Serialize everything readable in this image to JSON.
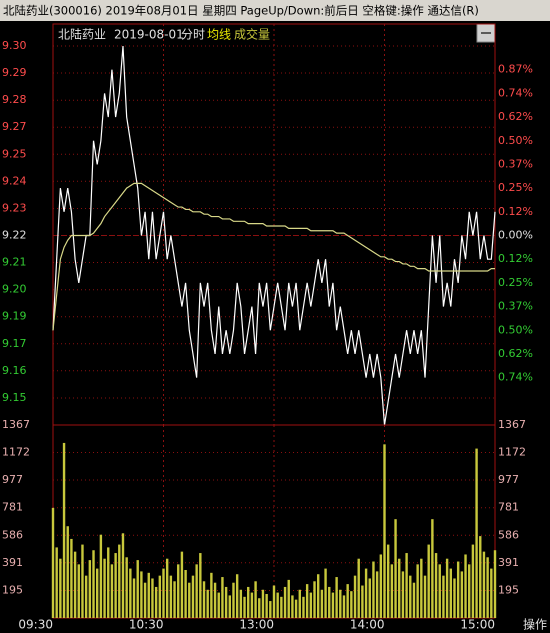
{
  "title_bar": "北陆药业(300016) 2019年08月01日 星期四 PageUp/Down:前后日 空格键:操作 通达信(R)",
  "corner_button": "操作",
  "chart_data": [
    {
      "type": "line",
      "name": "北陆药业",
      "date": "2019-08-01",
      "mode": "分时",
      "grid": true,
      "xlim": [
        0,
        240
      ],
      "x": [
        0,
        2,
        4,
        6,
        8,
        10,
        12,
        14,
        16,
        18,
        20,
        22,
        24,
        26,
        28,
        30,
        32,
        34,
        36,
        38,
        40,
        42,
        44,
        46,
        48,
        50,
        52,
        54,
        56,
        58,
        60,
        62,
        64,
        66,
        68,
        70,
        72,
        74,
        76,
        78,
        80,
        82,
        84,
        86,
        88,
        90,
        92,
        94,
        96,
        98,
        100,
        102,
        104,
        106,
        108,
        110,
        112,
        114,
        116,
        118,
        120,
        122,
        124,
        126,
        128,
        130,
        132,
        134,
        136,
        138,
        140,
        142,
        144,
        146,
        148,
        150,
        152,
        154,
        156,
        158,
        160,
        162,
        164,
        166,
        168,
        170,
        172,
        174,
        176,
        178,
        180,
        182,
        184,
        186,
        188,
        190,
        192,
        194,
        196,
        198,
        200,
        202,
        204,
        206,
        208,
        210,
        212,
        214,
        216,
        218,
        220,
        222,
        224,
        226,
        228,
        230,
        232,
        234,
        236,
        238,
        240
      ],
      "series": [
        {
          "color": "#ffffff",
          "values": [
            9.18,
            9.21,
            9.24,
            9.23,
            9.24,
            9.23,
            9.21,
            9.2,
            9.21,
            9.22,
            9.22,
            9.26,
            9.25,
            9.26,
            9.28,
            9.27,
            9.29,
            9.27,
            9.28,
            9.3,
            9.27,
            9.26,
            9.25,
            9.24,
            9.22,
            9.23,
            9.21,
            9.23,
            9.21,
            9.22,
            9.23,
            9.21,
            9.22,
            9.21,
            9.2,
            9.19,
            9.2,
            9.18,
            9.17,
            9.16,
            9.2,
            9.19,
            9.2,
            9.18,
            9.17,
            9.19,
            9.17,
            9.18,
            9.17,
            9.18,
            9.2,
            9.19,
            9.17,
            9.18,
            9.19,
            9.17,
            9.2,
            9.19,
            9.2,
            9.18,
            9.19,
            9.2,
            9.19,
            9.18,
            9.2,
            9.19,
            9.2,
            9.18,
            9.19,
            9.2,
            9.19,
            9.2,
            9.21,
            9.2,
            9.21,
            9.19,
            9.2,
            9.18,
            9.19,
            9.18,
            9.17,
            9.18,
            9.17,
            9.18,
            9.17,
            9.16,
            9.17,
            9.16,
            9.17,
            9.16,
            9.14,
            9.15,
            9.16,
            9.17,
            9.16,
            9.17,
            9.18,
            9.17,
            9.18,
            9.17,
            9.18,
            9.16,
            9.19,
            9.22,
            9.2,
            9.22,
            9.19,
            9.2,
            9.19,
            9.21,
            9.2,
            9.22,
            9.21,
            9.23,
            9.22,
            9.23,
            9.21,
            9.22,
            9.21,
            9.21,
            9.23
          ]
        },
        {
          "name": "均线",
          "color": "#d8d888",
          "values": [
            9.18,
            9.195,
            9.21,
            9.215,
            9.218,
            9.22,
            9.22,
            9.22,
            9.22,
            9.22,
            9.22,
            9.221,
            9.223,
            9.225,
            9.228,
            9.23,
            9.232,
            9.234,
            9.236,
            9.238,
            9.24,
            9.241,
            9.242,
            9.242,
            9.242,
            9.241,
            9.24,
            9.239,
            9.238,
            9.237,
            9.236,
            9.235,
            9.234,
            9.233,
            9.232,
            9.232,
            9.231,
            9.231,
            9.23,
            9.23,
            9.23,
            9.229,
            9.229,
            9.228,
            9.228,
            9.228,
            9.227,
            9.227,
            9.227,
            9.226,
            9.226,
            9.226,
            9.226,
            9.225,
            9.225,
            9.225,
            9.225,
            9.225,
            9.224,
            9.224,
            9.224,
            9.224,
            9.224,
            9.224,
            9.223,
            9.223,
            9.223,
            9.223,
            9.223,
            9.223,
            9.222,
            9.222,
            9.222,
            9.222,
            9.222,
            9.222,
            9.222,
            9.221,
            9.221,
            9.221,
            9.22,
            9.219,
            9.218,
            9.217,
            9.216,
            9.215,
            9.214,
            9.213,
            9.212,
            9.211,
            9.211,
            9.21,
            9.21,
            9.209,
            9.209,
            9.208,
            9.208,
            9.207,
            9.207,
            9.206,
            9.206,
            9.206,
            9.205,
            9.205,
            9.205,
            9.205,
            9.205,
            9.205,
            9.205,
            9.205,
            9.205,
            9.205,
            9.205,
            9.205,
            9.205,
            9.205,
            9.205,
            9.205,
            9.205,
            9.206,
            9.206
          ]
        }
      ],
      "ylim": [
        9.14,
        9.3
      ],
      "yticks": [
        {
          "value": 9.3,
          "label": "9.30"
        },
        {
          "value": 9.2886,
          "label": "9.29"
        },
        {
          "value": 9.2771,
          "label": "9.28"
        },
        {
          "value": 9.2657,
          "label": "9.27"
        },
        {
          "value": 9.2543,
          "label": "9.25"
        },
        {
          "value": 9.2429,
          "label": "9.24"
        },
        {
          "value": 9.2314,
          "label": "9.23"
        },
        {
          "value": 9.22,
          "label": "9.22"
        },
        {
          "value": 9.2086,
          "label": "9.21"
        },
        {
          "value": 9.1971,
          "label": "9.20"
        },
        {
          "value": 9.1857,
          "label": "9.19"
        },
        {
          "value": 9.1743,
          "label": "9.17"
        },
        {
          "value": 9.1629,
          "label": "9.16"
        },
        {
          "value": 9.1514,
          "label": "9.15"
        }
      ],
      "y2lim": [
        -0.992,
        0.992
      ],
      "y2ticks": [
        {
          "value": 0.868,
          "label": "0.87%"
        },
        {
          "value": 0.744,
          "label": "0.74%"
        },
        {
          "value": 0.62,
          "label": "0.62%"
        },
        {
          "value": 0.496,
          "label": "0.50%"
        },
        {
          "value": 0.372,
          "label": "0.37%"
        },
        {
          "value": 0.248,
          "label": "0.25%"
        },
        {
          "value": 0.124,
          "label": "0.12%"
        },
        {
          "value": 0,
          "label": "0.00%"
        },
        {
          "value": -0.124,
          "label": "0.12%"
        },
        {
          "value": -0.248,
          "label": "0.25%"
        },
        {
          "value": -0.372,
          "label": "0.37%"
        },
        {
          "value": -0.496,
          "label": "0.50%"
        },
        {
          "value": -0.62,
          "label": "0.62%"
        },
        {
          "value": -0.744,
          "label": "0.74%"
        }
      ]
    },
    {
      "type": "bar",
      "grid": true,
      "xlim": [
        0,
        240
      ],
      "xticks": [
        {
          "value": 0,
          "label": "09:30"
        },
        {
          "value": 60,
          "label": "10:30"
        },
        {
          "value": 120,
          "label": "13:00"
        },
        {
          "value": 180,
          "label": "14:00"
        },
        {
          "value": 240,
          "label": "15:00"
        }
      ],
      "x": [
        0,
        2,
        4,
        6,
        8,
        10,
        12,
        14,
        16,
        18,
        20,
        22,
        24,
        26,
        28,
        30,
        32,
        34,
        36,
        38,
        40,
        42,
        44,
        46,
        48,
        50,
        52,
        54,
        56,
        58,
        60,
        62,
        64,
        66,
        68,
        70,
        72,
        74,
        76,
        78,
        80,
        82,
        84,
        86,
        88,
        90,
        92,
        94,
        96,
        98,
        100,
        102,
        104,
        106,
        108,
        110,
        112,
        114,
        116,
        118,
        120,
        122,
        124,
        126,
        128,
        130,
        132,
        134,
        136,
        138,
        140,
        142,
        144,
        146,
        148,
        150,
        152,
        154,
        156,
        158,
        160,
        162,
        164,
        166,
        168,
        170,
        172,
        174,
        176,
        178,
        180,
        182,
        184,
        186,
        188,
        190,
        192,
        194,
        196,
        198,
        200,
        202,
        204,
        206,
        208,
        210,
        212,
        214,
        216,
        218,
        220,
        222,
        224,
        226,
        228,
        230,
        232,
        234,
        236,
        238,
        240
      ],
      "series": [
        {
          "name": "成交量",
          "color": "#c8c83c",
          "values": [
            780,
            500,
            420,
            1240,
            650,
            560,
            470,
            380,
            520,
            300,
            410,
            480,
            350,
            590,
            420,
            500,
            380,
            460,
            520,
            600,
            430,
            350,
            280,
            410,
            330,
            250,
            320,
            280,
            220,
            300,
            350,
            420,
            300,
            260,
            380,
            470,
            340,
            250,
            300,
            380,
            460,
            260,
            200,
            320,
            250,
            180,
            290,
            220,
            160,
            250,
            310,
            200,
            150,
            220,
            180,
            260,
            140,
            200,
            170,
            120,
            230,
            180,
            150,
            220,
            270,
            160,
            130,
            200,
            150,
            240,
            180,
            260,
            310,
            200,
            350,
            220,
            180,
            290,
            200,
            160,
            240,
            190,
            300,
            420,
            230,
            350,
            280,
            400,
            330,
            450,
            1230,
            520,
            380,
            700,
            420,
            330,
            460,
            300,
            250,
            380,
            420,
            300,
            520,
            700,
            460,
            380,
            300,
            420,
            350,
            280,
            400,
            330,
            450,
            380,
            520,
            1200,
            580,
            470,
            430,
            350,
            480
          ]
        }
      ],
      "ylim": [
        0,
        1367
      ],
      "yticks": [
        195,
        391,
        586,
        781,
        977,
        1172,
        1367
      ]
    }
  ]
}
